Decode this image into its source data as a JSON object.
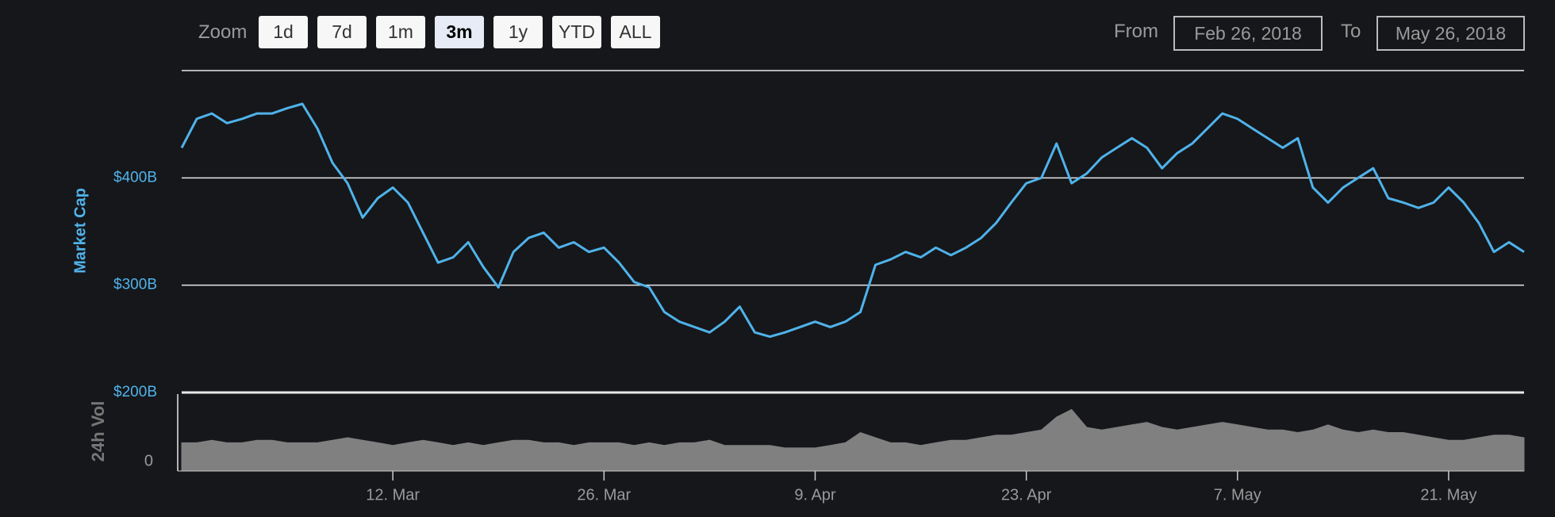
{
  "ui": {
    "zoom_label": "Zoom",
    "zoom_buttons": [
      "1d",
      "7d",
      "1m",
      "3m",
      "1y",
      "YTD",
      "ALL"
    ],
    "selected": 3,
    "from_label": "From",
    "from": "Feb 26, 2018",
    "to_label": "To",
    "to": "May 26, 2018"
  },
  "chart_data": [
    {
      "type": "line",
      "ylabel": "Market Cap",
      "categories": [
        null,
        null,
        null,
        null,
        null,
        null,
        null,
        null,
        null,
        null,
        null,
        null,
        null,
        null,
        "12. Mar",
        null,
        null,
        null,
        null,
        null,
        null,
        null,
        null,
        null,
        null,
        null,
        null,
        null,
        "26. Mar",
        null,
        null,
        null,
        null,
        null,
        null,
        null,
        null,
        null,
        null,
        null,
        null,
        null,
        "9. Apr",
        null,
        null,
        null,
        null,
        null,
        null,
        null,
        null,
        null,
        null,
        null,
        null,
        null,
        "23. Apr",
        null,
        null,
        null,
        null,
        null,
        null,
        null,
        null,
        null,
        null,
        null,
        null,
        null,
        "7. May",
        null,
        null,
        null,
        null,
        null,
        null,
        null,
        null,
        null,
        null,
        null,
        null,
        null,
        "21. May",
        null,
        null,
        null,
        null,
        null
      ],
      "series": [
        {
          "name": "Market Cap",
          "color": "#4fb3ea",
          "values": [
            428,
            455,
            460,
            451,
            455,
            460,
            460,
            465,
            469,
            446,
            414,
            395,
            363,
            381,
            391,
            377,
            349,
            321,
            326,
            340,
            317,
            298,
            331,
            344,
            349,
            335,
            340,
            331,
            335,
            321,
            303,
            298,
            275,
            266,
            261,
            256,
            266,
            280,
            256,
            252,
            256,
            261,
            266,
            261,
            266,
            275,
            319,
            324,
            331,
            326,
            335,
            328,
            335,
            344,
            358,
            377,
            395,
            400,
            432,
            395,
            404,
            419,
            428,
            437,
            428,
            409,
            423,
            432,
            446,
            460,
            455,
            446,
            437,
            428,
            437,
            391,
            377,
            391,
            400,
            409,
            381,
            377,
            372,
            377,
            391,
            377,
            358,
            331,
            340,
            331
          ]
        }
      ],
      "ylim": [
        200,
        500
      ],
      "yticks": [
        {
          "value": 200,
          "label": "$200B"
        },
        {
          "value": 300,
          "label": "$300B"
        },
        {
          "value": 400,
          "label": "$400B"
        }
      ],
      "grid": true
    },
    {
      "type": "area",
      "ylabel": "24h Vol",
      "series": [
        {
          "name": "24h Vol",
          "color": "#808080",
          "values": [
            11,
            11,
            12,
            11,
            11,
            12,
            12,
            11,
            11,
            11,
            12,
            13,
            12,
            11,
            10,
            11,
            12,
            11,
            10,
            11,
            10,
            11,
            12,
            12,
            11,
            11,
            10,
            11,
            11,
            11,
            10,
            11,
            10,
            11,
            11,
            12,
            10,
            10,
            10,
            10,
            9,
            9,
            9,
            10,
            11,
            15,
            13,
            11,
            11,
            10,
            11,
            12,
            12,
            13,
            14,
            14,
            15,
            16,
            21,
            24,
            17,
            16,
            17,
            18,
            19,
            17,
            16,
            17,
            18,
            19,
            18,
            17,
            16,
            16,
            15,
            16,
            18,
            16,
            15,
            16,
            15,
            15,
            14,
            13,
            12,
            12,
            13,
            14,
            14,
            13
          ]
        }
      ],
      "ylim": [
        0,
        30
      ],
      "yticks": [
        0
      ]
    }
  ]
}
